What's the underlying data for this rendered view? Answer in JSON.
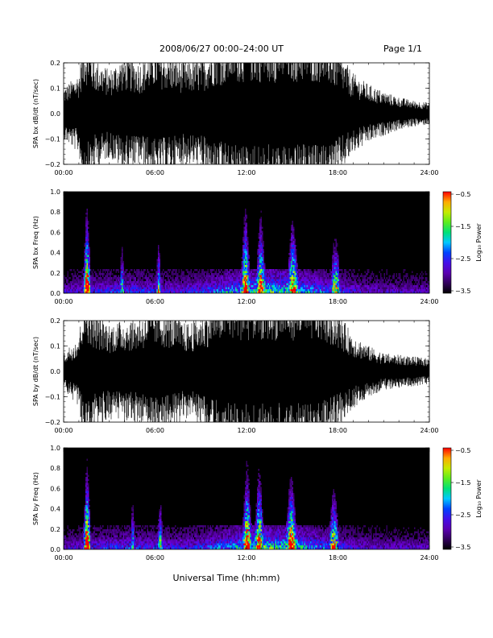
{
  "header": {
    "title": "2008/06/27  00:00–24:00 UT",
    "page": "Page 1/1"
  },
  "xlabel": "Universal Time (hh:mm)",
  "chart_data": [
    {
      "type": "line",
      "ylabel": "SPA bx dB/dt (nT/sec)",
      "xlim": [
        0,
        24
      ],
      "ylim": [
        -0.2,
        0.2
      ],
      "x_tick_labels": [
        "00:00",
        "06:00",
        "12:00",
        "18:00",
        "24:00"
      ],
      "y_tick_labels": [
        "0.2",
        "0.1",
        "0.0",
        "−0.1",
        "−0.2"
      ],
      "x_hours": [
        0,
        1,
        1.3,
        1.6,
        2,
        3,
        4,
        5,
        6,
        7,
        8,
        9,
        10,
        10.5,
        11,
        12,
        13,
        14,
        15,
        16,
        17,
        18,
        19,
        20,
        21,
        22,
        23,
        24
      ],
      "amplitude": [
        0.07,
        0.11,
        0.2,
        0.2,
        0.15,
        0.12,
        0.16,
        0.14,
        0.18,
        0.16,
        0.14,
        0.15,
        0.2,
        0.2,
        0.22,
        0.22,
        0.22,
        0.22,
        0.22,
        0.22,
        0.22,
        0.17,
        0.11,
        0.08,
        0.06,
        0.045,
        0.035,
        0.03
      ]
    },
    {
      "type": "heatmap",
      "ylabel": "SPA bx Freq (Hz)",
      "xlim": [
        0,
        24
      ],
      "ylim": [
        0,
        1
      ],
      "x_tick_labels": [
        "00:00",
        "06:00",
        "12:00",
        "18:00",
        "24:00"
      ],
      "y_tick_labels": [
        "1.0",
        "0.8",
        "0.6",
        "0.4",
        "0.2",
        "0.0"
      ],
      "colorbar": {
        "label": "Log₁₀ Power",
        "ticks": [
          "−0.5",
          "−1.5",
          "−2.5",
          "−3.5"
        ],
        "range": [
          -3.5,
          -0.5
        ]
      },
      "bursts": [
        {
          "t": 1.5,
          "intensity": 1.0,
          "width": 0.2,
          "height": 1.0
        },
        {
          "t": 3.8,
          "intensity": 0.45,
          "width": 0.15,
          "height": 0.5
        },
        {
          "t": 6.2,
          "intensity": 0.5,
          "width": 0.15,
          "height": 0.55
        },
        {
          "t": 11.9,
          "intensity": 0.9,
          "width": 0.25,
          "height": 1.0
        },
        {
          "t": 12.9,
          "intensity": 0.85,
          "width": 0.25,
          "height": 0.95
        },
        {
          "t": 15.0,
          "intensity": 0.85,
          "width": 0.3,
          "height": 0.85
        },
        {
          "t": 17.8,
          "intensity": 0.6,
          "width": 0.3,
          "height": 0.6
        }
      ]
    },
    {
      "type": "line",
      "ylabel": "SPA by dB/dt (nT/sec)",
      "xlim": [
        0,
        24
      ],
      "ylim": [
        -0.2,
        0.2
      ],
      "x_tick_labels": [
        "00:00",
        "06:00",
        "12:00",
        "18:00",
        "24:00"
      ],
      "y_tick_labels": [
        "0.2",
        "0.1",
        "0.0",
        "−0.1",
        "−0.2"
      ],
      "x_hours": [
        0,
        1,
        1.3,
        1.6,
        2,
        3,
        4,
        5,
        6,
        7,
        8,
        9,
        10,
        10.5,
        11,
        12,
        13,
        14,
        15,
        16,
        17,
        18,
        19,
        20,
        21,
        22,
        23,
        24
      ],
      "amplitude": [
        0.05,
        0.1,
        0.2,
        0.2,
        0.16,
        0.13,
        0.14,
        0.15,
        0.18,
        0.16,
        0.13,
        0.15,
        0.2,
        0.22,
        0.22,
        0.22,
        0.22,
        0.22,
        0.22,
        0.22,
        0.21,
        0.16,
        0.1,
        0.07,
        0.05,
        0.045,
        0.04,
        0.035
      ]
    },
    {
      "type": "heatmap",
      "ylabel": "SPA by Freq (Hz)",
      "xlim": [
        0,
        24
      ],
      "ylim": [
        0,
        1
      ],
      "x_tick_labels": [
        "00:00",
        "06:00",
        "12:00",
        "18:00",
        "24:00"
      ],
      "y_tick_labels": [
        "1.0",
        "0.8",
        "0.6",
        "0.4",
        "0.2",
        "0.0"
      ],
      "colorbar": {
        "label": "Log₁₀ Power",
        "ticks": [
          "−0.5",
          "−1.5",
          "−2.5",
          "−3.5"
        ],
        "range": [
          -3.5,
          -0.5
        ]
      },
      "bursts": [
        {
          "t": 1.5,
          "intensity": 1.0,
          "width": 0.2,
          "height": 1.0
        },
        {
          "t": 4.5,
          "intensity": 0.45,
          "width": 0.15,
          "height": 0.5
        },
        {
          "t": 6.3,
          "intensity": 0.5,
          "width": 0.15,
          "height": 0.55
        },
        {
          "t": 12.0,
          "intensity": 0.95,
          "width": 0.25,
          "height": 1.0
        },
        {
          "t": 12.8,
          "intensity": 0.9,
          "width": 0.25,
          "height": 0.95
        },
        {
          "t": 14.9,
          "intensity": 0.9,
          "width": 0.3,
          "height": 0.85
        },
        {
          "t": 17.7,
          "intensity": 0.7,
          "width": 0.3,
          "height": 0.65
        }
      ]
    }
  ]
}
